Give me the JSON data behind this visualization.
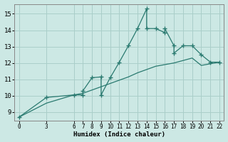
{
  "xlabel": "Humidex (Indice chaleur)",
  "xlim": [
    -0.5,
    22.5
  ],
  "ylim": [
    8.5,
    15.6
  ],
  "yticks": [
    9,
    10,
    11,
    12,
    13,
    14,
    15
  ],
  "xticks": [
    0,
    3,
    6,
    7,
    8,
    9,
    10,
    11,
    12,
    13,
    14,
    15,
    16,
    17,
    18,
    19,
    20,
    21,
    22
  ],
  "bg_color": "#cce8e4",
  "grid_color": "#aacfca",
  "line_color": "#2a7a70",
  "line1_x": [
    0,
    3,
    6,
    7,
    7,
    8,
    9,
    9,
    10,
    11,
    12,
    13,
    14,
    14,
    15,
    16,
    16,
    17,
    17,
    18,
    19,
    20,
    21,
    22
  ],
  "line1_y": [
    8.7,
    9.9,
    10.05,
    10.05,
    10.3,
    11.1,
    11.15,
    10.05,
    11.1,
    12.05,
    13.05,
    14.1,
    15.3,
    14.1,
    14.1,
    13.85,
    14.1,
    13.05,
    12.6,
    13.05,
    13.05,
    12.5,
    12.05,
    12.05
  ],
  "line2_x": [
    0,
    3,
    6,
    7,
    8,
    9,
    10,
    11,
    12,
    13,
    14,
    15,
    16,
    17,
    18,
    19,
    20,
    21,
    22
  ],
  "line2_y": [
    8.7,
    9.55,
    10.05,
    10.15,
    10.35,
    10.55,
    10.75,
    10.95,
    11.15,
    11.4,
    11.6,
    11.8,
    11.9,
    12.0,
    12.15,
    12.3,
    11.85,
    11.95,
    12.05
  ]
}
